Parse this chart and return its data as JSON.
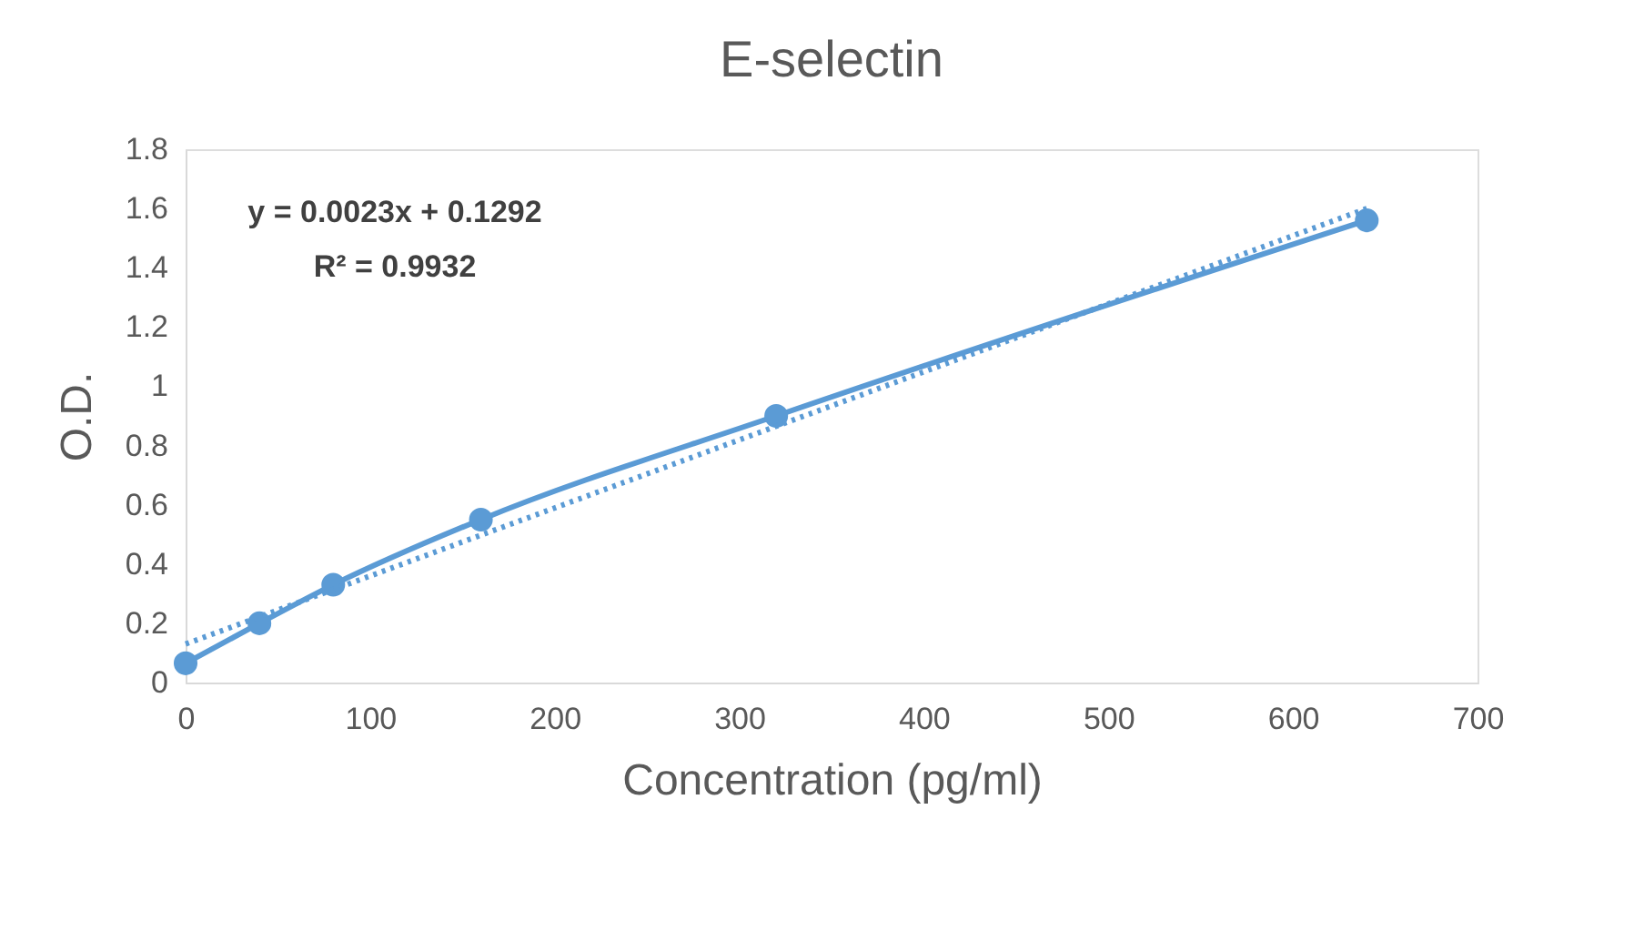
{
  "chart_data": {
    "type": "line",
    "title": "E-selectin",
    "xlabel": "Concentration (pg/ml)",
    "ylabel": "O.D.",
    "x": [
      0,
      40,
      80,
      160,
      320,
      640
    ],
    "series": [
      {
        "type": "line",
        "color": "#5b9bd5",
        "marker": "circle",
        "line_style": "solid",
        "values": [
          0.065,
          0.2,
          0.33,
          0.55,
          0.9,
          1.56
        ]
      },
      {
        "type": "line",
        "color": "#5b9bd5",
        "marker": "none",
        "line_style": "dotted",
        "x": [
          0,
          640
        ],
        "values": [
          0.13,
          1.6
        ]
      }
    ],
    "annotations": [
      "y = 0.0023x + 0.1292",
      "R² = 0.9932"
    ],
    "xlim": [
      0,
      700
    ],
    "xticks": [
      0,
      100,
      200,
      300,
      400,
      500,
      600,
      700
    ],
    "ylim": [
      0,
      1.8
    ],
    "yticks": [
      0,
      0.2,
      0.4,
      0.6,
      0.8,
      1,
      1.2,
      1.4,
      1.6,
      1.8
    ],
    "grid": false
  }
}
